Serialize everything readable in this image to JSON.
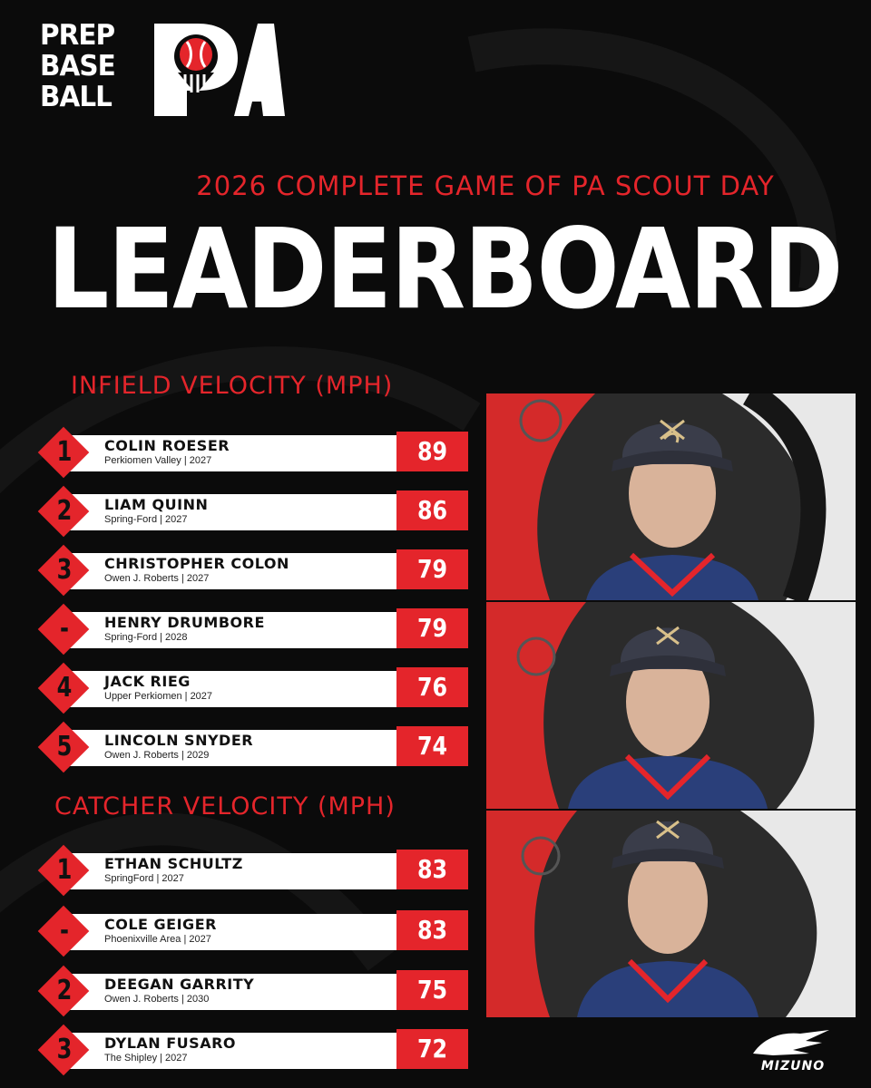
{
  "brand": {
    "logo_lines": [
      "PREP",
      "BASE",
      "BALL"
    ],
    "logo_mark": "PA",
    "sponsor": "MIZUNO"
  },
  "header": {
    "subtitle": "2026 COMPLETE GAME OF PA SCOUT DAY",
    "title": "LEADERBOARD"
  },
  "sections": [
    {
      "title": "INFIELD VELOCITY (MPH)",
      "rows": [
        {
          "rank": "1",
          "name": "COLIN ROESER",
          "school": "Perkiomen Valley | 2027",
          "value": "89"
        },
        {
          "rank": "2",
          "name": "LIAM QUINN",
          "school": "Spring-Ford | 2027",
          "value": "86"
        },
        {
          "rank": "3",
          "name": "CHRISTOPHER COLON",
          "school": "Owen J. Roberts | 2027",
          "value": "79"
        },
        {
          "rank": "-",
          "name": "HENRY DRUMBORE",
          "school": "Spring-Ford | 2028",
          "value": "79"
        },
        {
          "rank": "4",
          "name": "JACK RIEG",
          "school": "Upper Perkiomen | 2027",
          "value": "76"
        },
        {
          "rank": "5",
          "name": "LINCOLN SNYDER",
          "school": "Owen J. Roberts | 2029",
          "value": "74"
        }
      ]
    },
    {
      "title": "CATCHER VELOCITY (MPH)",
      "rows": [
        {
          "rank": "1",
          "name": "ETHAN SCHULTZ",
          "school": "SpringFord | 2027",
          "value": "83"
        },
        {
          "rank": "-",
          "name": "COLE GEIGER",
          "school": "Phoenixville Area | 2027",
          "value": "83"
        },
        {
          "rank": "2",
          "name": "DEEGAN GARRITY",
          "school": "Owen J. Roberts | 2030",
          "value": "75"
        },
        {
          "rank": "3",
          "name": "DYLAN FUSARO",
          "school": "The Shipley | 2027",
          "value": "72"
        }
      ]
    }
  ],
  "colors": {
    "accent": "#e4252b",
    "background": "#0b0b0b",
    "bar": "#ffffff",
    "jersey": "#2a3f7a",
    "cap": "#3a3d4a"
  },
  "icons": [
    "baseball-icon",
    "mizuno-runbird-icon"
  ]
}
